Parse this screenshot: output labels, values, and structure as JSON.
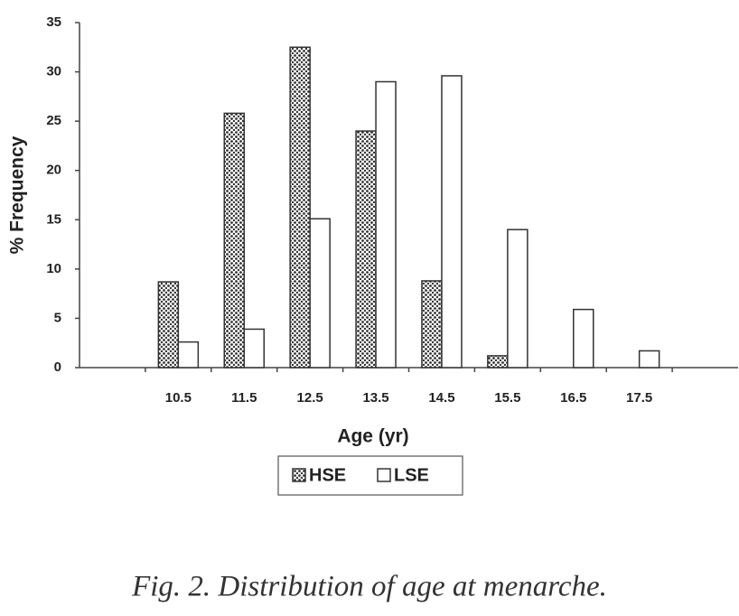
{
  "chart_data": {
    "type": "bar",
    "caption": "Fig. 2. Distribution of age at menarche.",
    "x_label": "Age (yr)",
    "y_label": "% Frequency",
    "categories": [
      null,
      "10.5",
      "11.5",
      "12.5",
      "13.5",
      "14.5",
      "15.5",
      "16.5",
      "17.5",
      null
    ],
    "series": [
      {
        "name": "HSE",
        "color": "#333333",
        "values": [
          null,
          8.7,
          25.8,
          32.5,
          24,
          8.8,
          1.2,
          null,
          null,
          null
        ]
      },
      {
        "name": "LSE",
        "color": "#ffffff",
        "values": [
          null,
          2.6,
          3.9,
          15.1,
          29,
          29.6,
          14,
          5.9,
          1.7,
          null
        ]
      }
    ],
    "ylim": [
      0,
      35
    ],
    "yticks": [
      0,
      5,
      10,
      15,
      20,
      25,
      30,
      35
    ],
    "grid": false
  }
}
